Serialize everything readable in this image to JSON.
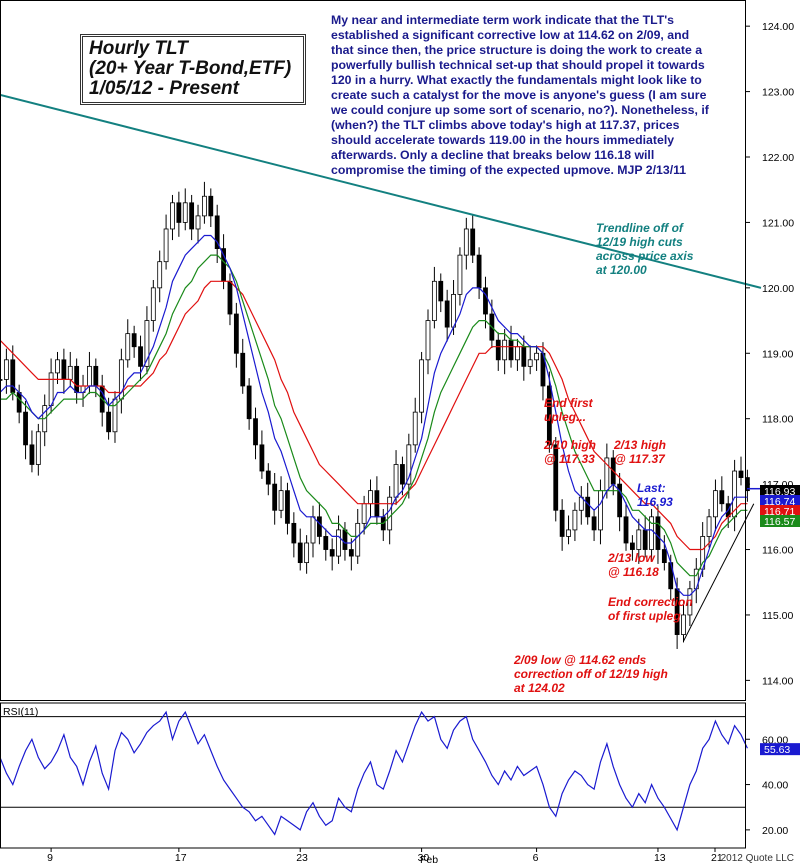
{
  "chart_data": {
    "type": "candlestick",
    "title_lines": [
      "Hourly TLT",
      "(20+ Year T-Bond,ETF)",
      "1/05/12 - Present"
    ],
    "commentary": "My near and intermediate term work indicate that the TLT's established a significant corrective low at 114.62 on 2/09, and that since then, the price structure is doing the work to create a powerfully bullish technical set-up that should propel it towards 120 in a hurry. What exactly the fundamentals might look like to create such a catalyst for the move is anyone's guess (I am sure we could conjure up some sort of scenario, no?). Nonetheless, if (when?) the TLT climbs above today's high at 117.37, prices should accelerate towards 119.00 in the hours immediately afterwards. Only a decline that breaks below 116.18 will compromise the timing of the expected upmove. MJP 2/13/11",
    "price_axis": {
      "ylim": [
        113.7,
        124.4
      ],
      "ticks": [
        "114.00",
        "115.00",
        "116.00",
        "117.00",
        "118.00",
        "119.00",
        "120.00",
        "121.00",
        "122.00",
        "123.00",
        "124.00"
      ]
    },
    "x_axis": {
      "ticks": [
        "9",
        "17",
        "23",
        "30",
        "6",
        "13",
        "21"
      ],
      "month_label": "Feb",
      "xlim": [
        0,
        116
      ]
    },
    "price_labels": [
      {
        "value": "116.93",
        "color": "#000000"
      },
      {
        "value": "116.74",
        "color": "#1a1ad0"
      },
      {
        "value": "116.71",
        "color": "#e01010"
      },
      {
        "value": "116.57",
        "color": "#1a8a1a"
      }
    ],
    "trendline": {
      "from": [
        0,
        122.95
      ],
      "to": [
        116,
        120.0
      ]
    },
    "support_line": {
      "from": [
        107,
        114.6
      ],
      "to": [
        118,
        116.7
      ]
    },
    "close": [
      118.6,
      118.9,
      118.4,
      118.1,
      117.6,
      117.3,
      117.8,
      118.2,
      118.7,
      118.9,
      118.6,
      118.8,
      118.4,
      118.5,
      118.8,
      118.5,
      118.1,
      117.8,
      118.3,
      118.9,
      119.3,
      119.1,
      118.8,
      119.5,
      120.0,
      120.4,
      120.9,
      121.3,
      121.0,
      121.3,
      120.9,
      121.1,
      121.4,
      121.1,
      120.6,
      120.1,
      119.6,
      119.0,
      118.5,
      118.0,
      117.6,
      117.2,
      117.0,
      116.6,
      116.9,
      116.4,
      116.1,
      115.8,
      116.1,
      116.5,
      116.2,
      116.0,
      115.9,
      116.3,
      116.0,
      115.9,
      116.4,
      116.7,
      116.9,
      116.5,
      116.3,
      116.8,
      117.3,
      117.0,
      117.6,
      118.1,
      118.9,
      119.5,
      120.1,
      119.8,
      119.4,
      119.9,
      120.5,
      120.9,
      120.5,
      120.0,
      119.6,
      119.2,
      118.9,
      119.2,
      118.9,
      119.1,
      118.8,
      118.9,
      119.0,
      118.5,
      117.6,
      116.6,
      116.2,
      116.3,
      116.6,
      116.8,
      116.5,
      116.3,
      116.9,
      117.4,
      117.0,
      116.5,
      116.1,
      116.0,
      116.3,
      116.0,
      116.5,
      116.0,
      115.8,
      115.4,
      114.7,
      115.0,
      115.4,
      115.7,
      116.2,
      116.5,
      116.9,
      116.7,
      116.5,
      117.2,
      117.1,
      116.9
    ],
    "ema_blue": [
      118.4,
      118.5,
      118.5,
      118.4,
      118.3,
      118.1,
      118.0,
      118.1,
      118.2,
      118.4,
      118.4,
      118.5,
      118.4,
      118.4,
      118.5,
      118.5,
      118.4,
      118.2,
      118.3,
      118.4,
      118.6,
      118.7,
      118.7,
      118.9,
      119.1,
      119.4,
      119.7,
      120.1,
      120.3,
      120.5,
      120.6,
      120.7,
      120.8,
      120.8,
      120.7,
      120.5,
      120.3,
      120.0,
      119.6,
      119.2,
      118.8,
      118.4,
      118.1,
      117.7,
      117.5,
      117.2,
      116.9,
      116.6,
      116.5,
      116.5,
      116.4,
      116.3,
      116.2,
      116.2,
      116.1,
      116.1,
      116.2,
      116.3,
      116.5,
      116.5,
      116.5,
      116.6,
      116.8,
      116.9,
      117.1,
      117.4,
      117.7,
      118.2,
      118.7,
      119.0,
      119.2,
      119.4,
      119.6,
      119.9,
      120.0,
      120.0,
      119.9,
      119.7,
      119.5,
      119.4,
      119.3,
      119.3,
      119.2,
      119.1,
      119.1,
      119.0,
      118.6,
      118.1,
      117.6,
      117.2,
      116.9,
      116.8,
      116.7,
      116.6,
      116.7,
      116.9,
      117.0,
      116.9,
      116.7,
      116.5,
      116.4,
      116.3,
      116.3,
      116.2,
      116.1,
      115.8,
      115.4,
      115.3,
      115.3,
      115.4,
      115.7,
      116.0,
      116.3,
      116.5,
      116.6,
      116.8,
      116.8,
      116.8
    ],
    "ema_green": [
      118.3,
      118.3,
      118.4,
      118.3,
      118.2,
      118.1,
      118.0,
      118.0,
      118.1,
      118.2,
      118.3,
      118.3,
      118.3,
      118.3,
      118.4,
      118.4,
      118.3,
      118.2,
      118.2,
      118.3,
      118.4,
      118.5,
      118.6,
      118.7,
      118.9,
      119.1,
      119.3,
      119.6,
      119.8,
      120.0,
      120.1,
      120.3,
      120.4,
      120.5,
      120.5,
      120.4,
      120.3,
      120.1,
      119.8,
      119.5,
      119.2,
      118.9,
      118.6,
      118.2,
      118.0,
      117.7,
      117.4,
      117.1,
      116.9,
      116.8,
      116.7,
      116.6,
      116.4,
      116.4,
      116.3,
      116.2,
      116.2,
      116.3,
      116.4,
      116.4,
      116.4,
      116.5,
      116.6,
      116.7,
      116.9,
      117.1,
      117.4,
      117.7,
      118.1,
      118.4,
      118.6,
      118.8,
      119.0,
      119.2,
      119.4,
      119.5,
      119.5,
      119.4,
      119.3,
      119.3,
      119.2,
      119.2,
      119.1,
      119.1,
      119.1,
      119.0,
      118.8,
      118.5,
      118.1,
      117.8,
      117.5,
      117.3,
      117.1,
      116.9,
      116.9,
      116.9,
      116.9,
      116.9,
      116.8,
      116.6,
      116.6,
      116.5,
      116.4,
      116.4,
      116.3,
      116.1,
      115.8,
      115.7,
      115.6,
      115.6,
      115.8,
      115.9,
      116.1,
      116.3,
      116.4,
      116.5,
      116.6,
      116.6
    ],
    "ema_red": [
      119.2,
      119.1,
      119.0,
      118.9,
      118.8,
      118.7,
      118.6,
      118.6,
      118.6,
      118.6,
      118.6,
      118.6,
      118.5,
      118.5,
      118.5,
      118.5,
      118.5,
      118.4,
      118.4,
      118.4,
      118.5,
      118.5,
      118.5,
      118.6,
      118.7,
      118.9,
      119.0,
      119.2,
      119.4,
      119.6,
      119.7,
      119.8,
      120.0,
      120.1,
      120.1,
      120.1,
      120.1,
      120.0,
      119.9,
      119.7,
      119.5,
      119.3,
      119.1,
      118.9,
      118.6,
      118.4,
      118.1,
      117.9,
      117.7,
      117.5,
      117.3,
      117.2,
      117.1,
      117.0,
      116.9,
      116.8,
      116.7,
      116.7,
      116.7,
      116.7,
      116.7,
      116.7,
      116.7,
      116.8,
      116.9,
      117.0,
      117.2,
      117.4,
      117.6,
      117.8,
      118.0,
      118.2,
      118.4,
      118.6,
      118.8,
      119.0,
      119.0,
      119.1,
      119.1,
      119.1,
      119.1,
      119.1,
      119.1,
      119.1,
      119.1,
      119.1,
      119.0,
      118.8,
      118.6,
      118.3,
      118.1,
      117.9,
      117.7,
      117.5,
      117.4,
      117.3,
      117.2,
      117.1,
      117.0,
      116.9,
      116.8,
      116.7,
      116.7,
      116.6,
      116.5,
      116.4,
      116.2,
      116.1,
      116.0,
      116.0,
      116.0,
      116.1,
      116.2,
      116.4,
      116.5,
      116.6,
      116.7,
      116.7
    ],
    "rsi": {
      "label": "RSI(11)",
      "ylim": [
        12,
        76
      ],
      "ticks": [
        "20.00",
        "40.00",
        "60.00"
      ],
      "levels": [
        30,
        70
      ],
      "current": "55.63",
      "values": [
        52,
        45,
        40,
        48,
        55,
        60,
        52,
        47,
        50,
        55,
        62,
        52,
        48,
        40,
        50,
        57,
        45,
        38,
        55,
        63,
        60,
        54,
        58,
        63,
        66,
        68,
        72,
        60,
        68,
        72,
        65,
        58,
        62,
        55,
        48,
        42,
        38,
        34,
        30,
        28,
        24,
        26,
        22,
        18,
        26,
        24,
        22,
        20,
        28,
        32,
        26,
        22,
        24,
        34,
        30,
        28,
        38,
        45,
        50,
        40,
        38,
        46,
        55,
        50,
        58,
        66,
        72,
        68,
        70,
        60,
        56,
        64,
        68,
        70,
        60,
        55,
        50,
        44,
        40,
        46,
        42,
        48,
        44,
        46,
        48,
        40,
        30,
        26,
        36,
        42,
        46,
        44,
        40,
        38,
        50,
        58,
        48,
        40,
        34,
        30,
        36,
        32,
        40,
        34,
        30,
        25,
        20,
        30,
        40,
        46,
        56,
        60,
        68,
        62,
        58,
        66,
        62,
        56
      ]
    }
  },
  "annotations": {
    "trendline_note": "Trendline off of\n12/19 high cuts\nacross price axis\nat 120.00",
    "end_first_upleg": "End first\nupleg...",
    "high_2_10": "2/10 high\n@ 117.33",
    "high_2_13": "2/13 high\n@ 117.37",
    "last": "Last:\n116.93",
    "low_2_13": "2/13 low\n@ 116.18",
    "end_correction": "End correction\nof first upleg",
    "low_2_09": "2/09 low @ 114.62 ends\ncorrection off of 12/19 high\nat 124.02"
  },
  "copyright": "2012 Quote LLC",
  "colors": {
    "ema_blue": "#1a1ad0",
    "ema_green": "#1a8a1a",
    "ema_red": "#e01010",
    "trendline": "#138080",
    "rsi_line": "#1a1ad0",
    "commentary": "#1a1a8c"
  }
}
